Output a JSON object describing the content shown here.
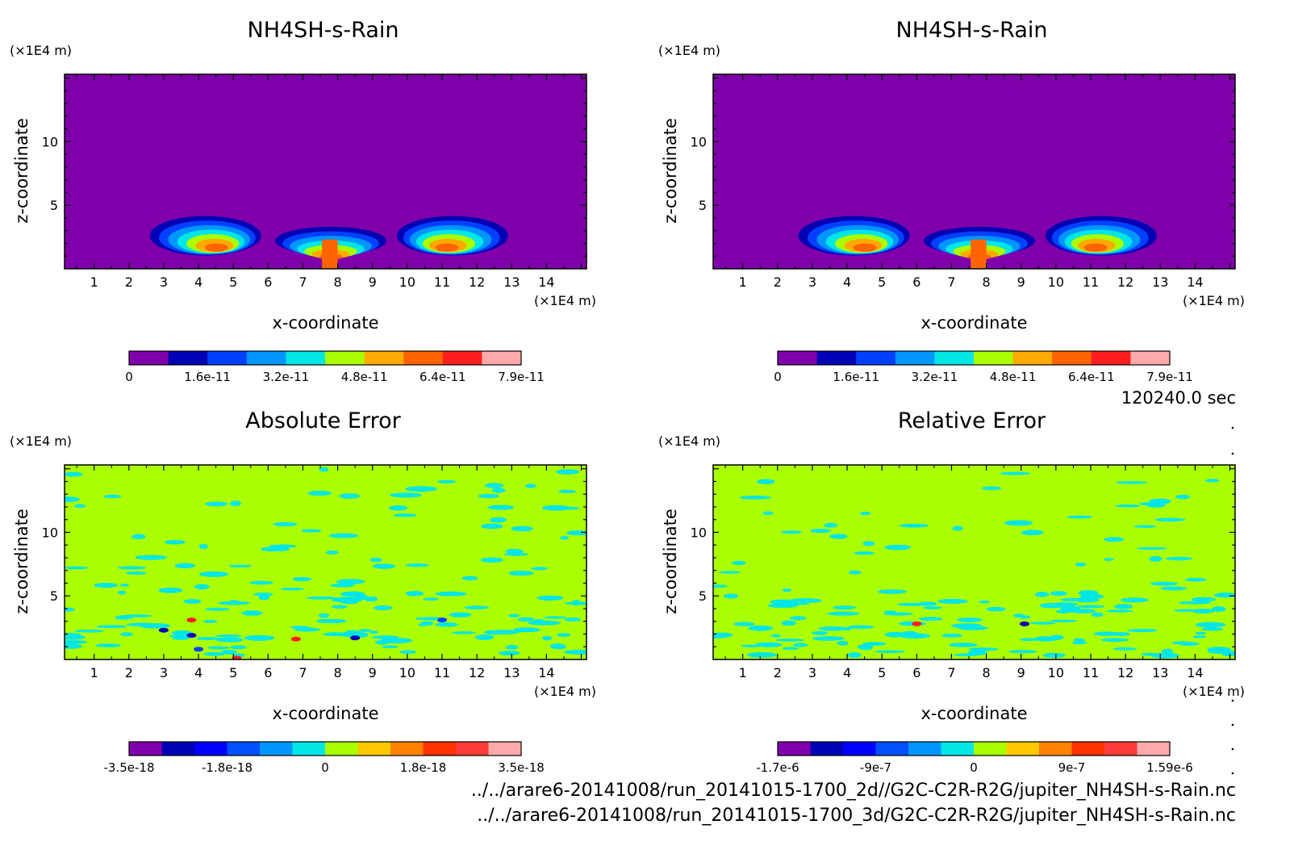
{
  "page": {
    "time_label": "120240.0 sec",
    "file_paths": [
      "../../arare6-20141008/run_20141015-1700_2d//G2C-C2R-R2G/jupiter_NH4SH-s-Rain.nc",
      "../../arare6-20141008/run_20141015-1700_3d/G2C-C2R-R2G/jupiter_NH4SH-s-Rain.nc"
    ],
    "colors": {
      "background": "#7f00aa",
      "error_field": "#aaff00",
      "cyan": "#00e6e6"
    }
  },
  "chart_data": [
    {
      "type": "heatmap",
      "title": "NH4SH-s-Rain",
      "xlabel": "x-coordinate",
      "ylabel": "z-coordinate",
      "x_unit": "(×1E4 m)",
      "y_unit": "(×1E4 m)",
      "xlim": [
        0,
        15
      ],
      "ylim": [
        0,
        15
      ],
      "xticks": [
        "1",
        "2",
        "3",
        "4",
        "5",
        "6",
        "7",
        "8",
        "9",
        "10",
        "11",
        "12",
        "13",
        "14"
      ],
      "yticks": [
        "5",
        "10"
      ],
      "colorbar": {
        "labels": [
          "0",
          "1.6e-11",
          "3.2e-11",
          "4.8e-11",
          "6.4e-11",
          "7.9e-11"
        ],
        "colors": [
          "#7f00aa",
          "#0000b4",
          "#0040ff",
          "#0096ff",
          "#00e6e6",
          "#aaff00",
          "#ffaa00",
          "#ff6400",
          "#ff1e1e",
          "#ffaaaa"
        ]
      }
    },
    {
      "type": "heatmap",
      "title": "NH4SH-s-Rain",
      "xlabel": "x-coordinate",
      "ylabel": "z-coordinate",
      "x_unit": "(×1E4 m)",
      "y_unit": "(×1E4 m)",
      "xlim": [
        0,
        15
      ],
      "ylim": [
        0,
        15
      ],
      "xticks": [
        "1",
        "2",
        "3",
        "4",
        "5",
        "6",
        "7",
        "8",
        "9",
        "10",
        "11",
        "12",
        "13",
        "14"
      ],
      "yticks": [
        "5",
        "10"
      ],
      "colorbar": {
        "labels": [
          "0",
          "1.6e-11",
          "3.2e-11",
          "4.8e-11",
          "6.4e-11",
          "7.9e-11"
        ],
        "colors": [
          "#7f00aa",
          "#0000b4",
          "#0040ff",
          "#0096ff",
          "#00e6e6",
          "#aaff00",
          "#ffaa00",
          "#ff6400",
          "#ff1e1e",
          "#ffaaaa"
        ]
      }
    },
    {
      "type": "heatmap",
      "title": "Absolute Error",
      "xlabel": "x-coordinate",
      "ylabel": "z-coordinate",
      "x_unit": "(×1E4 m)",
      "y_unit": "(×1E4 m)",
      "xlim": [
        0,
        15
      ],
      "ylim": [
        0,
        15
      ],
      "xticks": [
        "1",
        "2",
        "3",
        "4",
        "5",
        "6",
        "7",
        "8",
        "9",
        "10",
        "11",
        "12",
        "13",
        "14"
      ],
      "yticks": [
        "5",
        "10"
      ],
      "colorbar": {
        "labels": [
          "-3.5e-18",
          "-1.8e-18",
          "0",
          "1.8e-18",
          "3.5e-18"
        ],
        "colors": [
          "#7f00aa",
          "#0000b4",
          "#0000ff",
          "#0050ff",
          "#0096ff",
          "#00e6e6",
          "#aaff00",
          "#ffc800",
          "#ff8200",
          "#ff3200",
          "#ff3c3c",
          "#ffaaaa"
        ]
      }
    },
    {
      "type": "heatmap",
      "title": "Relative Error",
      "xlabel": "x-coordinate",
      "ylabel": "z-coordinate",
      "x_unit": "(×1E4 m)",
      "y_unit": "(×1E4 m)",
      "xlim": [
        0,
        15
      ],
      "ylim": [
        0,
        15
      ],
      "xticks": [
        "1",
        "2",
        "3",
        "4",
        "5",
        "6",
        "7",
        "8",
        "9",
        "10",
        "11",
        "12",
        "13",
        "14"
      ],
      "yticks": [
        "5",
        "10"
      ],
      "colorbar": {
        "labels": [
          "-1.7e-6",
          "-9e-7",
          "0",
          "9e-7",
          "1.59e-6"
        ],
        "colors": [
          "#7f00aa",
          "#0000b4",
          "#0000ff",
          "#0050ff",
          "#0096ff",
          "#00e6e6",
          "#aaff00",
          "#ffc800",
          "#ff8200",
          "#ff3200",
          "#ff3c3c",
          "#ffaaaa"
        ]
      }
    }
  ]
}
